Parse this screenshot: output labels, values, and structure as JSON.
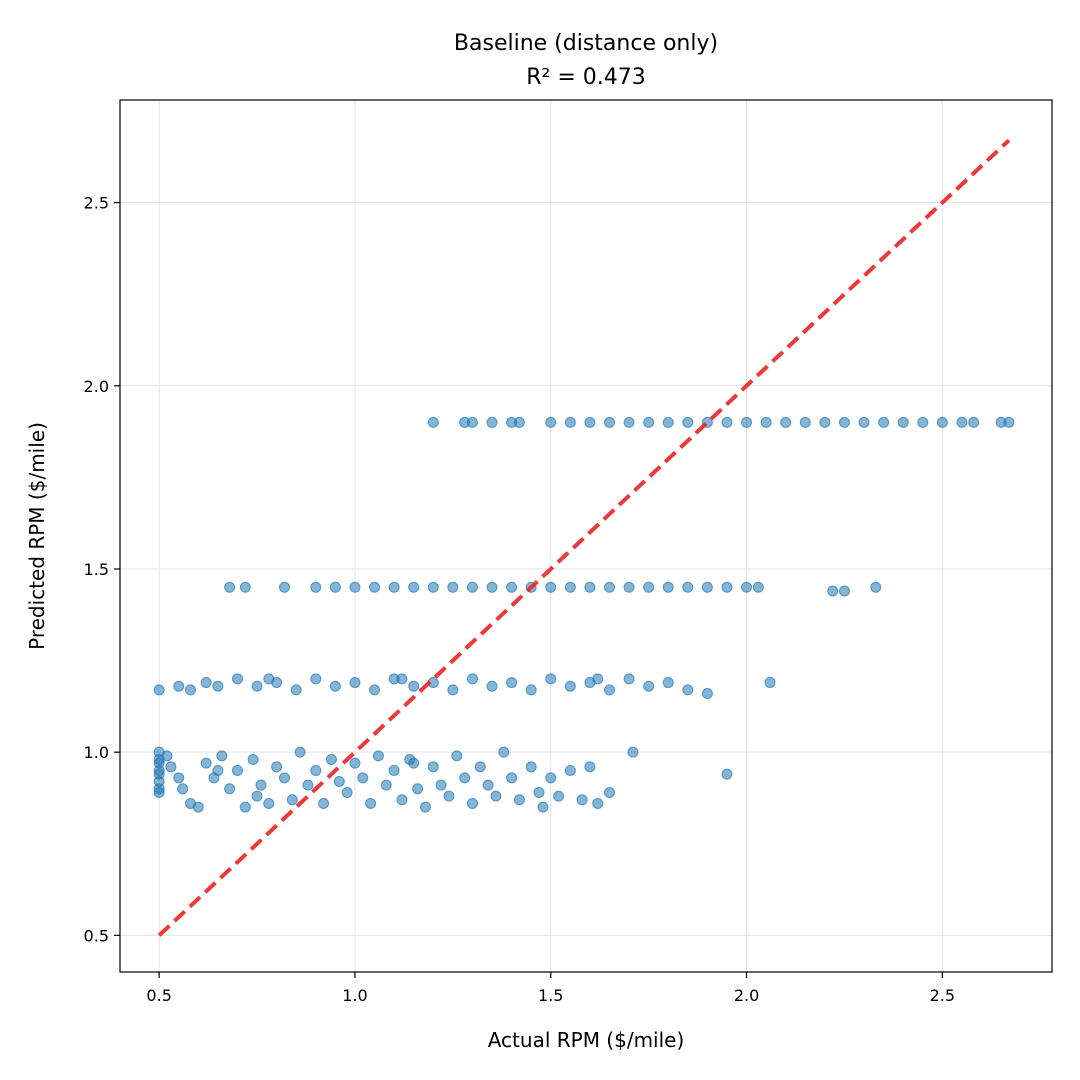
{
  "chart_data": {
    "type": "scatter",
    "title": "Baseline (distance only)",
    "subtitle": "R² = 0.473",
    "xlabel": "Actual RPM ($/mile)",
    "ylabel": "Predicted RPM ($/mile)",
    "xlim": [
      0.4,
      2.78
    ],
    "ylim": [
      0.4,
      2.78
    ],
    "xticks": [
      "0.5",
      "1.0",
      "1.5",
      "2.0",
      "2.5"
    ],
    "yticks": [
      "0.5",
      "1.0",
      "1.5",
      "2.0",
      "2.5"
    ],
    "grid": true,
    "colors": {
      "points": "#1f77b4",
      "reference_line": "#ee2222"
    },
    "reference_line": {
      "x": [
        0.5,
        2.67
      ],
      "y": [
        0.5,
        2.67
      ],
      "style": "dashed"
    },
    "series": [
      {
        "values_note": "sampled points",
        "points": [
          [
            0.5,
            0.95
          ],
          [
            0.5,
            0.98
          ],
          [
            0.5,
            0.92
          ],
          [
            0.5,
            0.89
          ],
          [
            0.5,
            1.0
          ],
          [
            0.5,
            0.97
          ],
          [
            0.5,
            0.9
          ],
          [
            0.5,
            0.94
          ],
          [
            0.52,
            0.99
          ],
          [
            0.53,
            0.96
          ],
          [
            0.55,
            0.93
          ],
          [
            0.56,
            0.9
          ],
          [
            0.58,
            0.86
          ],
          [
            0.6,
            0.85
          ],
          [
            0.62,
            0.97
          ],
          [
            0.64,
            0.93
          ],
          [
            0.66,
            0.99
          ],
          [
            0.68,
            0.9
          ],
          [
            0.7,
            0.95
          ],
          [
            0.72,
            0.85
          ],
          [
            0.74,
            0.98
          ],
          [
            0.76,
            0.91
          ],
          [
            0.78,
            0.86
          ],
          [
            0.8,
            0.96
          ],
          [
            0.82,
            0.93
          ],
          [
            0.84,
            0.87
          ],
          [
            0.86,
            1.0
          ],
          [
            0.88,
            0.91
          ],
          [
            0.9,
            0.95
          ],
          [
            0.92,
            0.86
          ],
          [
            0.94,
            0.98
          ],
          [
            0.96,
            0.92
          ],
          [
            0.98,
            0.89
          ],
          [
            1.0,
            0.97
          ],
          [
            1.02,
            0.93
          ],
          [
            1.04,
            0.86
          ],
          [
            1.06,
            0.99
          ],
          [
            1.08,
            0.91
          ],
          [
            1.1,
            0.95
          ],
          [
            1.12,
            0.87
          ],
          [
            1.14,
            0.98
          ],
          [
            1.16,
            0.9
          ],
          [
            1.18,
            0.85
          ],
          [
            1.2,
            0.96
          ],
          [
            1.22,
            0.91
          ],
          [
            1.24,
            0.88
          ],
          [
            1.26,
            0.99
          ],
          [
            1.28,
            0.93
          ],
          [
            1.3,
            0.86
          ],
          [
            1.32,
            0.96
          ],
          [
            1.34,
            0.91
          ],
          [
            1.36,
            0.88
          ],
          [
            1.38,
            1.0
          ],
          [
            1.4,
            0.93
          ],
          [
            1.42,
            0.87
          ],
          [
            1.45,
            0.96
          ],
          [
            1.47,
            0.89
          ],
          [
            1.48,
            0.85
          ],
          [
            1.5,
            0.93
          ],
          [
            1.52,
            0.88
          ],
          [
            1.55,
            0.95
          ],
          [
            1.58,
            0.87
          ],
          [
            1.6,
            0.96
          ],
          [
            1.62,
            0.86
          ],
          [
            1.65,
            0.89
          ],
          [
            1.71,
            1.0
          ],
          [
            1.95,
            0.94
          ],
          [
            0.75,
            0.88
          ],
          [
            0.65,
            0.95
          ],
          [
            1.15,
            0.97
          ],
          [
            0.5,
            1.17
          ],
          [
            0.55,
            1.18
          ],
          [
            0.58,
            1.17
          ],
          [
            0.62,
            1.19
          ],
          [
            0.65,
            1.18
          ],
          [
            0.7,
            1.2
          ],
          [
            0.75,
            1.18
          ],
          [
            0.8,
            1.19
          ],
          [
            0.85,
            1.17
          ],
          [
            0.9,
            1.2
          ],
          [
            0.95,
            1.18
          ],
          [
            1.0,
            1.19
          ],
          [
            1.05,
            1.17
          ],
          [
            1.1,
            1.2
          ],
          [
            1.15,
            1.18
          ],
          [
            1.2,
            1.19
          ],
          [
            1.25,
            1.17
          ],
          [
            1.3,
            1.2
          ],
          [
            1.35,
            1.18
          ],
          [
            1.4,
            1.19
          ],
          [
            1.45,
            1.17
          ],
          [
            1.5,
            1.2
          ],
          [
            1.55,
            1.18
          ],
          [
            1.6,
            1.19
          ],
          [
            1.65,
            1.17
          ],
          [
            1.7,
            1.2
          ],
          [
            1.75,
            1.18
          ],
          [
            1.8,
            1.19
          ],
          [
            1.85,
            1.17
          ],
          [
            1.9,
            1.16
          ],
          [
            2.06,
            1.19
          ],
          [
            0.78,
            1.2
          ],
          [
            1.12,
            1.2
          ],
          [
            1.62,
            1.2
          ],
          [
            0.68,
            1.45
          ],
          [
            0.72,
            1.45
          ],
          [
            0.82,
            1.45
          ],
          [
            0.9,
            1.45
          ],
          [
            0.95,
            1.45
          ],
          [
            1.0,
            1.45
          ],
          [
            1.05,
            1.45
          ],
          [
            1.1,
            1.45
          ],
          [
            1.15,
            1.45
          ],
          [
            1.2,
            1.45
          ],
          [
            1.25,
            1.45
          ],
          [
            1.3,
            1.45
          ],
          [
            1.35,
            1.45
          ],
          [
            1.4,
            1.45
          ],
          [
            1.45,
            1.45
          ],
          [
            1.5,
            1.45
          ],
          [
            1.55,
            1.45
          ],
          [
            1.6,
            1.45
          ],
          [
            1.65,
            1.45
          ],
          [
            1.7,
            1.45
          ],
          [
            1.75,
            1.45
          ],
          [
            1.8,
            1.45
          ],
          [
            1.85,
            1.45
          ],
          [
            1.9,
            1.45
          ],
          [
            1.95,
            1.45
          ],
          [
            2.0,
            1.45
          ],
          [
            2.03,
            1.45
          ],
          [
            2.22,
            1.44
          ],
          [
            2.25,
            1.44
          ],
          [
            2.33,
            1.45
          ],
          [
            1.2,
            1.9
          ],
          [
            1.28,
            1.9
          ],
          [
            1.3,
            1.9
          ],
          [
            1.35,
            1.9
          ],
          [
            1.4,
            1.9
          ],
          [
            1.42,
            1.9
          ],
          [
            1.5,
            1.9
          ],
          [
            1.55,
            1.9
          ],
          [
            1.6,
            1.9
          ],
          [
            1.65,
            1.9
          ],
          [
            1.7,
            1.9
          ],
          [
            1.75,
            1.9
          ],
          [
            1.8,
            1.9
          ],
          [
            1.85,
            1.9
          ],
          [
            1.9,
            1.9
          ],
          [
            1.95,
            1.9
          ],
          [
            2.0,
            1.9
          ],
          [
            2.05,
            1.9
          ],
          [
            2.1,
            1.9
          ],
          [
            2.15,
            1.9
          ],
          [
            2.2,
            1.9
          ],
          [
            2.25,
            1.9
          ],
          [
            2.3,
            1.9
          ],
          [
            2.35,
            1.9
          ],
          [
            2.4,
            1.9
          ],
          [
            2.45,
            1.9
          ],
          [
            2.5,
            1.9
          ],
          [
            2.55,
            1.9
          ],
          [
            2.58,
            1.9
          ],
          [
            2.65,
            1.9
          ],
          [
            2.67,
            1.9
          ]
        ]
      }
    ]
  }
}
